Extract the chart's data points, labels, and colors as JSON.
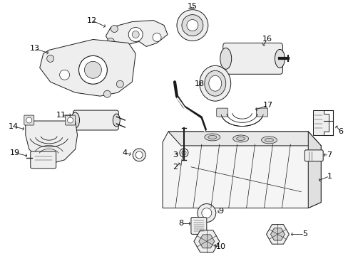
{
  "bg_color": "#ffffff",
  "line_color": "#1a1a1a",
  "text_color": "#000000",
  "figsize": [
    4.89,
    3.6
  ],
  "dpi": 100
}
